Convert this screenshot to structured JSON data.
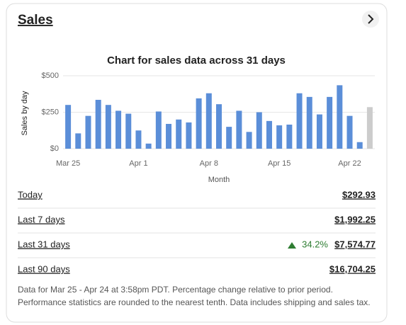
{
  "header": {
    "title": "Sales"
  },
  "chart_data": {
    "type": "bar",
    "title": "Chart for sales data across 31 days",
    "x_label": "Month",
    "y_label": "Sales by day",
    "categories": [
      "Mar 25",
      null,
      null,
      null,
      null,
      null,
      null,
      "Apr 1",
      null,
      null,
      null,
      null,
      null,
      null,
      "Apr 8",
      null,
      null,
      null,
      null,
      null,
      null,
      "Apr 15",
      null,
      null,
      null,
      null,
      null,
      null,
      "Apr 22",
      null,
      null
    ],
    "values": [
      300,
      105,
      225,
      335,
      300,
      260,
      240,
      125,
      35,
      255,
      170,
      200,
      180,
      345,
      380,
      305,
      150,
      260,
      115,
      250,
      190,
      160,
      165,
      380,
      355,
      235,
      355,
      435,
      225,
      45,
      285
    ],
    "colors": [
      "#5b8ed8",
      "#5b8ed8",
      "#5b8ed8",
      "#5b8ed8",
      "#5b8ed8",
      "#5b8ed8",
      "#5b8ed8",
      "#5b8ed8",
      "#5b8ed8",
      "#5b8ed8",
      "#5b8ed8",
      "#5b8ed8",
      "#5b8ed8",
      "#5b8ed8",
      "#5b8ed8",
      "#5b8ed8",
      "#5b8ed8",
      "#5b8ed8",
      "#5b8ed8",
      "#5b8ed8",
      "#5b8ed8",
      "#5b8ed8",
      "#5b8ed8",
      "#5b8ed8",
      "#5b8ed8",
      "#5b8ed8",
      "#5b8ed8",
      "#5b8ed8",
      "#5b8ed8",
      "#5b8ed8",
      "#cccccc"
    ],
    "ylim": [
      0,
      500
    ],
    "yticks": [
      {
        "value": 0,
        "label": "$0"
      },
      {
        "value": 250,
        "label": "$250"
      },
      {
        "value": 500,
        "label": "$500"
      }
    ],
    "grid": true
  },
  "stats": [
    {
      "label": "Today",
      "amount": "$292.93"
    },
    {
      "label": "Last 7 days",
      "amount": "$1,992.25"
    },
    {
      "label": "Last 31 days",
      "change": "34.2%",
      "amount": "$7,574.77"
    },
    {
      "label": "Last 90 days",
      "amount": "$16,704.25"
    }
  ],
  "footer": [
    "Data for Mar 25 - Apr 24 at 3:58pm PDT. Percentage change relative to prior period.",
    "Performance statistics are rounded to the nearest tenth. Data includes shipping and sales tax."
  ]
}
